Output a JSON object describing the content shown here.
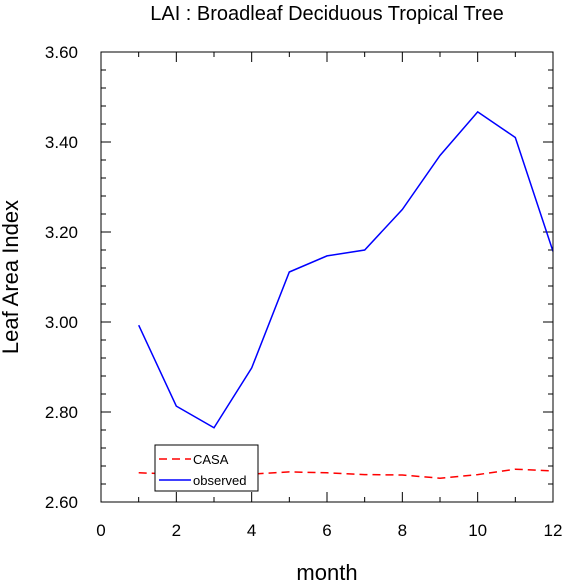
{
  "chart_data": {
    "type": "line",
    "title": "LAI : Broadleaf Deciduous Tropical Tree",
    "xlabel": "month",
    "ylabel": "Leaf Area Index",
    "xlim": [
      0,
      12
    ],
    "ylim": [
      2.6,
      3.6
    ],
    "x_ticks": [
      0,
      2,
      4,
      6,
      8,
      10,
      12
    ],
    "x_tick_labels": [
      "0",
      "2",
      "4",
      "6",
      "8",
      "10",
      "12"
    ],
    "y_ticks": [
      2.6,
      2.8,
      3.0,
      3.2,
      3.4,
      3.6
    ],
    "y_tick_labels": [
      "2.60",
      "2.80",
      "3.00",
      "3.20",
      "3.40",
      "3.60"
    ],
    "grid": false,
    "legend_position": "bottom-left",
    "series": [
      {
        "name": "CASA",
        "color": "#ff0000",
        "style": "dashed",
        "x": [
          1,
          2,
          3,
          4,
          5,
          6,
          7,
          8,
          9,
          10,
          11,
          12
        ],
        "values": [
          2.665,
          2.662,
          2.658,
          2.662,
          2.667,
          2.665,
          2.661,
          2.66,
          2.653,
          2.661,
          2.673,
          2.669
        ]
      },
      {
        "name": "observed",
        "color": "#0000ff",
        "style": "solid",
        "x": [
          1,
          2,
          3,
          4,
          5,
          6,
          7,
          8,
          9,
          10,
          11,
          12
        ],
        "values": [
          2.993,
          2.813,
          2.765,
          2.898,
          3.111,
          3.147,
          3.16,
          3.25,
          3.37,
          3.467,
          3.41,
          3.157
        ]
      }
    ]
  }
}
